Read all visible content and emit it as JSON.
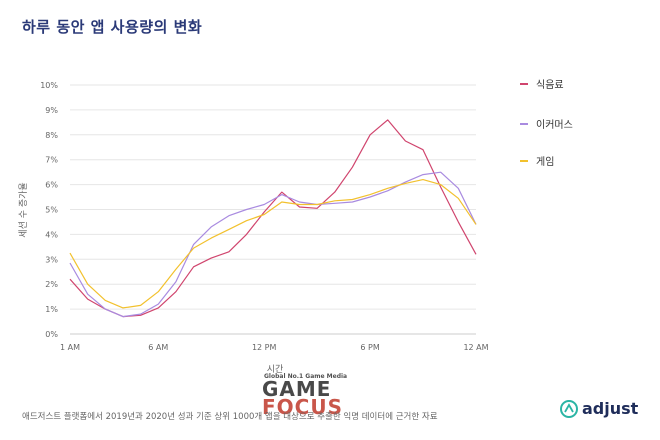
{
  "title": "하루 동안 앱 사용량의 변화",
  "footer": "애드저스트 플랫폼에서 2019년과 2020년 성과 기준 상위 1000개 앱을 대상으로 추출한 익명 데이터에 근거한 자료",
  "watermark": {
    "top": "Global No.1 Game Media",
    "word1": "GAME",
    "word2": "FOCUS"
  },
  "logo": {
    "text": "adjust",
    "icon": "adjust-logo-icon"
  },
  "colors": {
    "title": "#2b3a78",
    "grid": "#e6e6e6",
    "axis_text": "#666666"
  },
  "chart_data": {
    "type": "line",
    "title": "하루 동안 앱 사용량의 변화",
    "xlabel": "시간",
    "ylabel": "세션 수 증가율",
    "xlim": [
      0,
      23
    ],
    "ylim": [
      0,
      10
    ],
    "grid": true,
    "legend_position": "right",
    "x_ticks": [
      {
        "x": 0,
        "label": "1 AM"
      },
      {
        "x": 5,
        "label": "6 AM"
      },
      {
        "x": 11,
        "label": "12 PM"
      },
      {
        "x": 17,
        "label": "6 PM"
      },
      {
        "x": 23,
        "label": "12 AM"
      }
    ],
    "y_ticks": [
      "0%",
      "1%",
      "2%",
      "3%",
      "4%",
      "5%",
      "6%",
      "7%",
      "8%",
      "9%",
      "10%"
    ],
    "x": [
      0,
      1,
      2,
      3,
      4,
      5,
      6,
      7,
      8,
      9,
      10,
      11,
      12,
      13,
      14,
      15,
      16,
      17,
      18,
      19,
      20,
      21,
      22,
      23
    ],
    "series": [
      {
        "name": "식음료",
        "color": "#d0456e",
        "values": [
          2.2,
          1.4,
          1.0,
          0.7,
          0.75,
          1.05,
          1.7,
          2.7,
          3.05,
          3.3,
          4.0,
          4.9,
          5.7,
          5.1,
          5.05,
          5.7,
          6.7,
          8.0,
          8.6,
          7.75,
          7.4,
          5.9,
          4.5,
          3.2
        ]
      },
      {
        "name": "이커머스",
        "color": "#a98be0",
        "values": [
          2.85,
          1.6,
          1.0,
          0.7,
          0.8,
          1.2,
          2.1,
          3.6,
          4.3,
          4.75,
          5.0,
          5.2,
          5.6,
          5.3,
          5.2,
          5.25,
          5.3,
          5.5,
          5.75,
          6.1,
          6.4,
          6.5,
          5.85,
          4.4
        ]
      },
      {
        "name": "게임",
        "color": "#f2c12e",
        "values": [
          3.25,
          2.0,
          1.35,
          1.05,
          1.15,
          1.7,
          2.6,
          3.45,
          3.85,
          4.2,
          4.55,
          4.8,
          5.3,
          5.2,
          5.2,
          5.35,
          5.4,
          5.6,
          5.85,
          6.05,
          6.2,
          6.0,
          5.45,
          4.4
        ]
      }
    ]
  }
}
